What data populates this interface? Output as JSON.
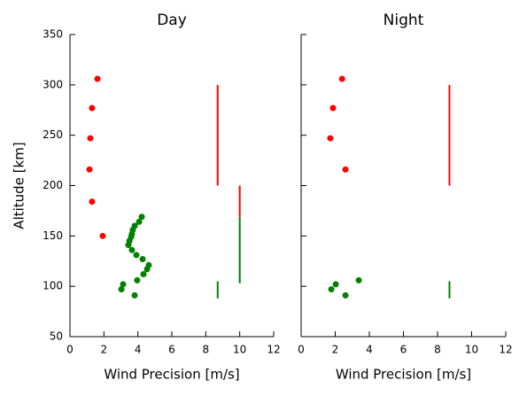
{
  "chart_data": [
    {
      "type": "scatter",
      "title": "Day",
      "xlabel": "Wind Precision [m/s]",
      "ylabel": "Altitude [km]",
      "xlim": [
        0,
        12
      ],
      "xticks": [
        0,
        2,
        4,
        6,
        8,
        10,
        12
      ],
      "ylim": [
        50,
        350
      ],
      "yticks": [
        50,
        100,
        150,
        200,
        250,
        300,
        350
      ],
      "show_ytick_labels": true,
      "series": [
        {
          "color": "#ff0000",
          "x": [
            1.62,
            1.3,
            1.2,
            1.15,
            1.3,
            1.93
          ],
          "y": [
            306,
            277,
            247,
            216,
            184,
            150
          ]
        },
        {
          "color": "#008000",
          "x": [
            4.23,
            4.07,
            3.81,
            3.7,
            3.65,
            3.6,
            3.5,
            3.44,
            3.65,
            3.91,
            4.28,
            4.64,
            4.54,
            4.33,
            3.96,
            3.13,
            3.03,
            3.81
          ],
          "y": [
            169,
            164,
            160,
            156,
            152,
            149,
            145,
            141,
            136,
            131,
            127,
            121,
            117,
            112,
            106,
            102,
            97,
            91
          ]
        }
      ],
      "segments": [
        {
          "color": "#ff0000",
          "x": 8.7,
          "ylow": 200,
          "yhigh": 300
        },
        {
          "color": "#ff0000",
          "x": 10,
          "ylow": 169,
          "yhigh": 200
        },
        {
          "color": "#008000",
          "x": 10,
          "ylow": 103,
          "yhigh": 169
        },
        {
          "color": "#008000",
          "x": 8.7,
          "ylow": 88,
          "yhigh": 105
        }
      ]
    },
    {
      "type": "scatter",
      "title": "Night",
      "xlabel": "Wind Precision [m/s]",
      "xlim": [
        0,
        12
      ],
      "xticks": [
        0,
        2,
        4,
        6,
        8,
        10,
        12
      ],
      "ylim": [
        50,
        350
      ],
      "yticks": [
        50,
        100,
        150,
        200,
        250,
        300,
        350
      ],
      "show_ytick_labels": false,
      "series": [
        {
          "color": "#ff0000",
          "x": [
            2.4,
            1.87,
            1.71,
            2.6
          ],
          "y": [
            306,
            277,
            247,
            216
          ]
        },
        {
          "color": "#008000",
          "x": [
            3.38,
            2.03,
            1.77,
            2.6
          ],
          "y": [
            106,
            102,
            97,
            91
          ]
        }
      ],
      "segments": [
        {
          "color": "#ff0000",
          "x": 8.7,
          "ylow": 200,
          "yhigh": 300
        },
        {
          "color": "#008000",
          "x": 8.7,
          "ylow": 88,
          "yhigh": 105
        }
      ]
    }
  ]
}
